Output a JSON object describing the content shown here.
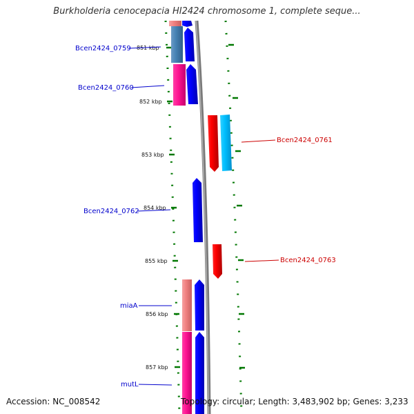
{
  "title": "Burkholderia cenocepacia HI2424 chromosome 1, complete seque...",
  "footer": {
    "accession": "Accession: NC_008542",
    "summary": "Topology: circular; Length: 3,483,902 bp; Genes: 3,233"
  },
  "ticks": [
    "851 kbp",
    "852 kbp",
    "853 kbp",
    "854 kbp",
    "855 kbp",
    "856 kbp",
    "857 kbp"
  ],
  "genes": [
    {
      "label": "Bcen2424_0759",
      "color": "#0000cc"
    },
    {
      "label": "Bcen2424_0760",
      "color": "#0000cc"
    },
    {
      "label": "Bcen2424_0761",
      "color": "#cc0000"
    },
    {
      "label": "Bcen2424_0762",
      "color": "#0000cc"
    },
    {
      "label": "Bcen2424_0763",
      "color": "#cc0000"
    },
    {
      "label": "miaA",
      "color": "#0000cc"
    },
    {
      "label": "mutL",
      "color": "#0000cc"
    }
  ]
}
